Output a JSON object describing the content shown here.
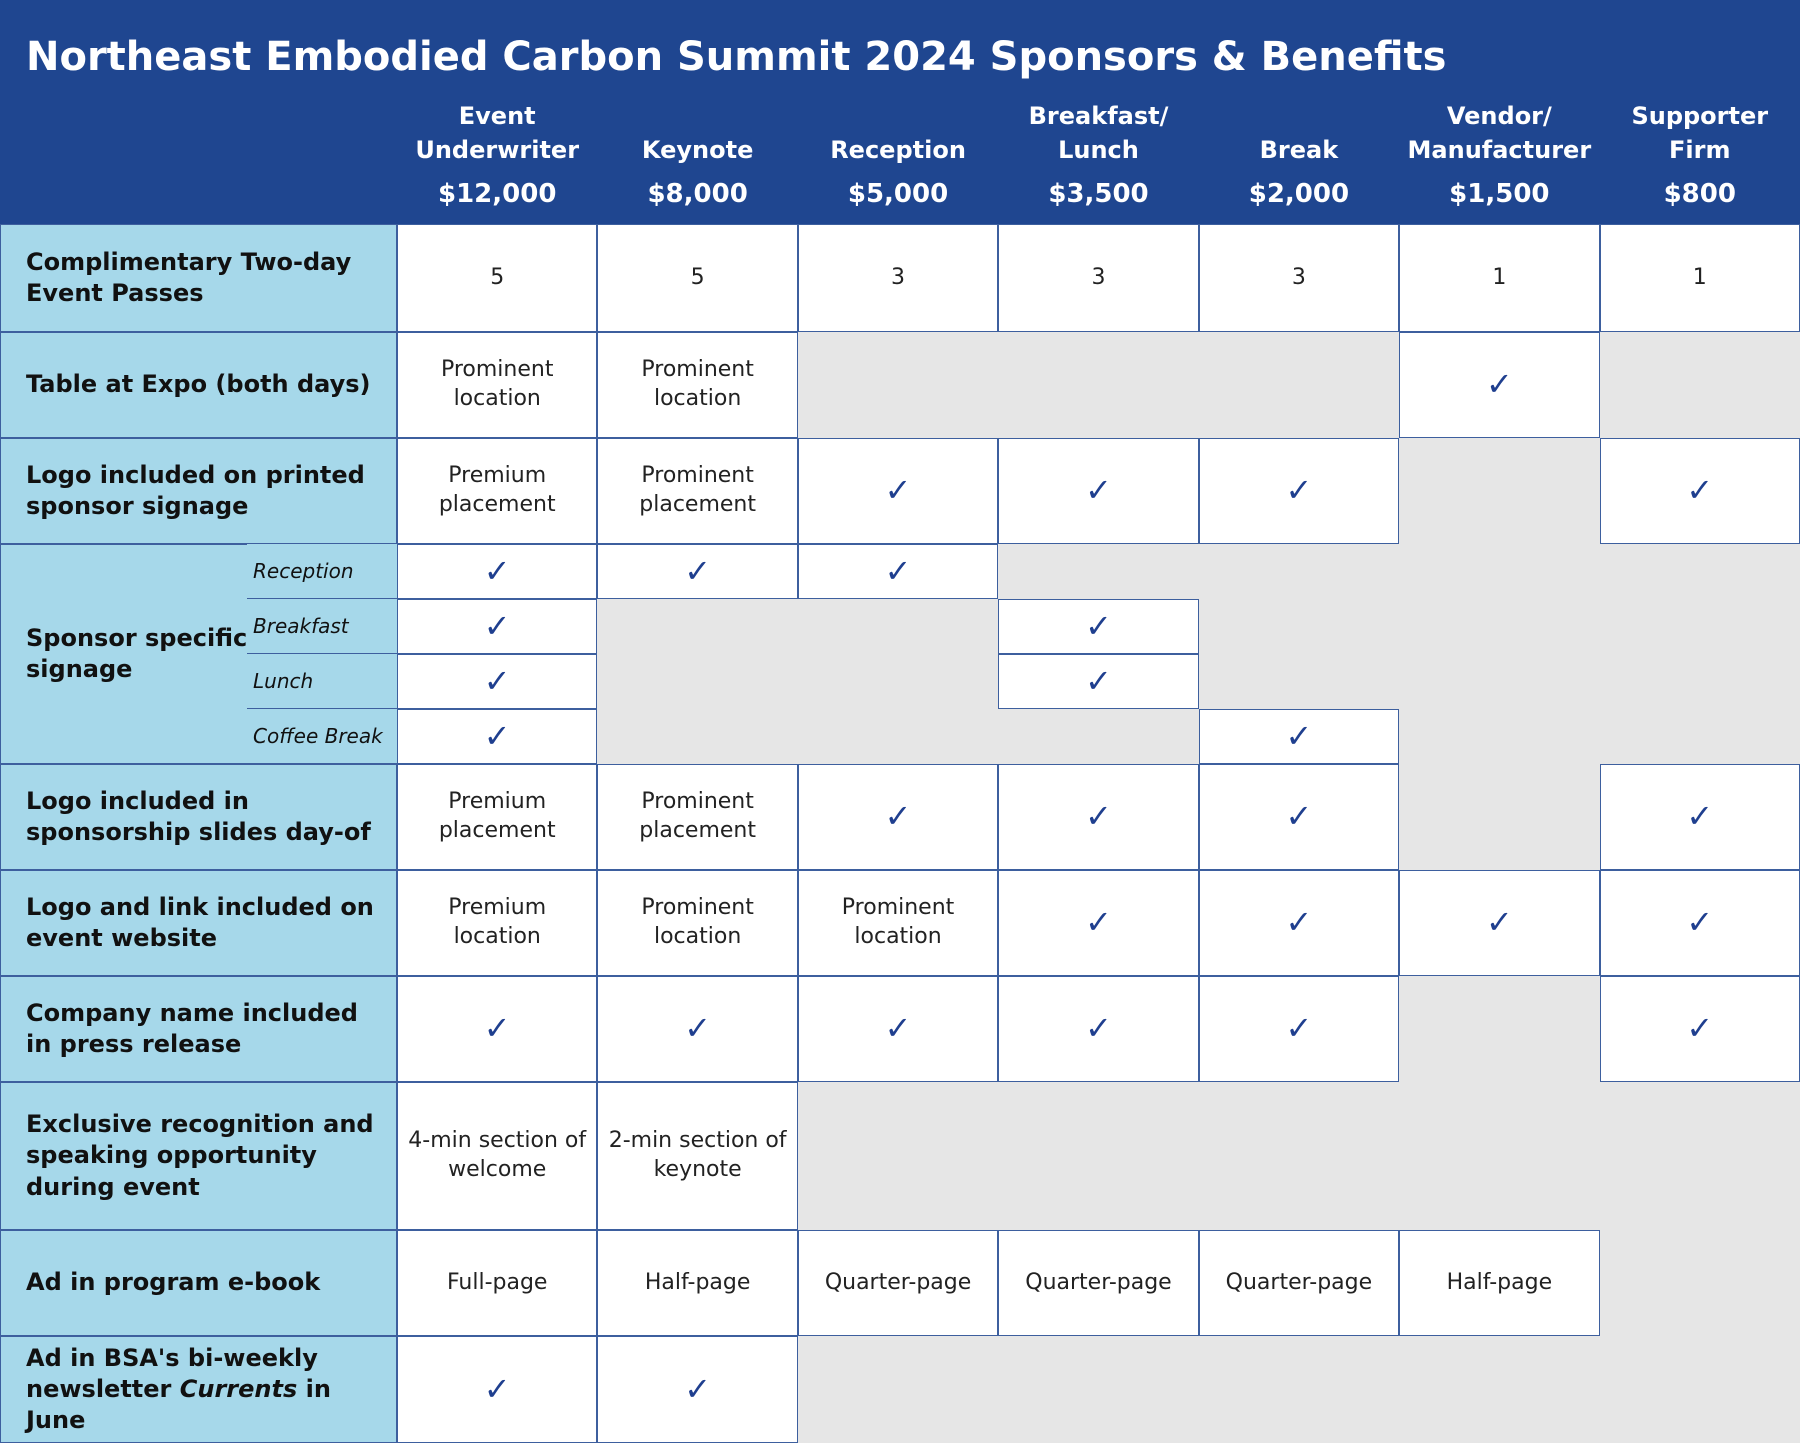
{
  "header": {
    "title": "Northeast Embodied Carbon Summit 2024 Sponsors & Benefits"
  },
  "columns": [
    {
      "name_lines": [
        "Event",
        "Underwriter"
      ],
      "price": "$12,000"
    },
    {
      "name_lines": [
        "Keynote"
      ],
      "price": "$8,000"
    },
    {
      "name_lines": [
        "Reception"
      ],
      "price": "$5,000"
    },
    {
      "name_lines": [
        "Breakfast/",
        "Lunch"
      ],
      "price": "$3,500"
    },
    {
      "name_lines": [
        "Break"
      ],
      "price": "$2,000"
    },
    {
      "name_lines": [
        "Vendor/",
        "Manufacturer"
      ],
      "price": "$1,500"
    },
    {
      "name_lines": [
        "Supporter",
        "Firm"
      ],
      "price": "$800"
    }
  ],
  "rows": [
    {
      "label": "Complimentary Two-day Event Passes",
      "cells": [
        5,
        5,
        3,
        3,
        3,
        1,
        1
      ]
    },
    {
      "label": "Table at Expo (both days)",
      "cells": [
        "Prominent location",
        "Prominent location",
        null,
        null,
        null,
        "✓",
        null
      ]
    },
    {
      "label": "Logo included on printed sponsor signage",
      "cells": [
        "Premium placement",
        "Prominent placement",
        "✓",
        "✓",
        "✓",
        null,
        "✓"
      ]
    },
    {
      "label": "Sponsor specific printed signage",
      "subrows": [
        {
          "label": "Reception",
          "cells": [
            "✓",
            "✓",
            "✓",
            null,
            null,
            null,
            null
          ]
        },
        {
          "label": "Breakfast",
          "cells": [
            "✓",
            null,
            null,
            "✓",
            null,
            null,
            null
          ]
        },
        {
          "label": "Lunch",
          "cells": [
            "✓",
            null,
            null,
            "✓",
            null,
            null,
            null
          ]
        },
        {
          "label": "Coffee Break",
          "cells": [
            "✓",
            null,
            null,
            null,
            "✓",
            null,
            null
          ]
        }
      ]
    },
    {
      "label": "Logo included in sponsorship slides day-of",
      "cells": [
        "Premium placement",
        "Prominent placement",
        "✓",
        "✓",
        "✓",
        null,
        "✓"
      ]
    },
    {
      "label": "Logo and link included on event website",
      "cells": [
        "Premium location",
        "Prominent location",
        "Prominent location",
        "✓",
        "✓",
        "✓",
        "✓"
      ]
    },
    {
      "label": "Company name included in press release",
      "cells": [
        "✓",
        "✓",
        "✓",
        "✓",
        "✓",
        null,
        "✓"
      ]
    },
    {
      "label": "Exclusive recognition and speaking opportunity during event",
      "cells": [
        "4-min section of welcome",
        "2-min section of keynote",
        null,
        null,
        null,
        null,
        null
      ]
    },
    {
      "label": "Ad in program e-book",
      "cells": [
        "Full-page",
        "Half-page",
        "Quarter-page",
        "Quarter-page",
        "Quarter-page",
        "Half-page",
        null
      ]
    },
    {
      "label_parts": [
        "Ad in BSA's bi-weekly newsletter ",
        "Currents",
        " in June"
      ],
      "cells": [
        "✓",
        "✓",
        null,
        null,
        null,
        null,
        null
      ]
    }
  ]
}
